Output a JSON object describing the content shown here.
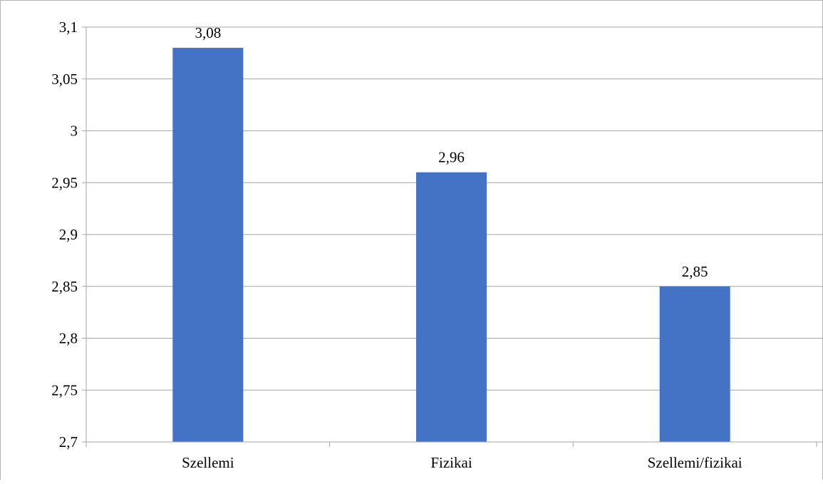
{
  "chart_data": {
    "type": "bar",
    "categories": [
      "Szellemi",
      "Fizikai",
      "Szellemi/fizikai"
    ],
    "values": [
      3.08,
      2.96,
      2.85
    ],
    "data_labels": [
      "3,08",
      "2,96",
      "2,85"
    ],
    "ylim": [
      2.7,
      3.1
    ],
    "y_ticks": [
      2.7,
      2.75,
      2.8,
      2.85,
      2.9,
      2.95,
      3.0,
      3.05,
      3.1
    ],
    "y_tick_labels": [
      "2,7",
      "2,75",
      "2,8",
      "2,85",
      "2,9",
      "2,95",
      "3",
      "3,05",
      "3,1"
    ],
    "grid": true,
    "bar_color": "#4472c4",
    "grid_color": "#a6a6a6",
    "title": "",
    "xlabel": "",
    "ylabel": ""
  }
}
